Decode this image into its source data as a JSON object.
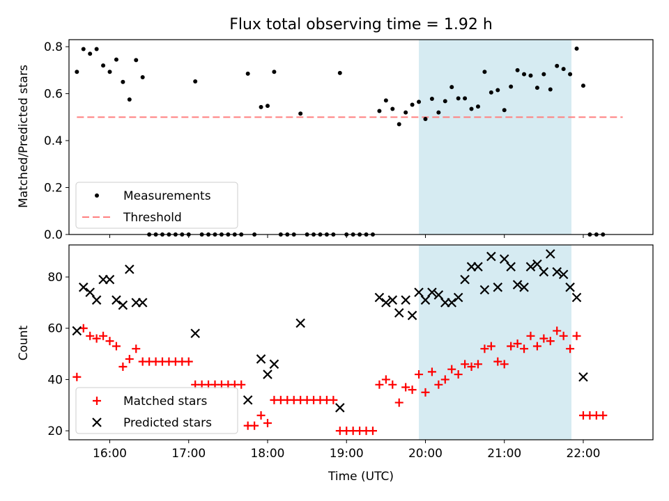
{
  "title": "Flux total observing time = 1.92 h",
  "chart_data": [
    {
      "type": "scatter",
      "ylabel": "Matched/Predicted stars",
      "xlim": [
        "15:29",
        "22:53"
      ],
      "ylim": [
        0,
        0.83
      ],
      "yticks": [
        "0.0",
        "0.2",
        "0.4",
        "0.6",
        "0.8"
      ],
      "shaded_span": [
        "19:55",
        "21:51"
      ],
      "shaded_color": "#add8e6",
      "threshold": 0.5,
      "legend_position": "lower-left",
      "legend": [
        {
          "label": "Measurements",
          "marker": "dot",
          "color": "#000000"
        },
        {
          "label": "Threshold",
          "marker": "dashed-line",
          "color": "#ff7f7f"
        }
      ],
      "series": [
        {
          "name": "Measurements",
          "color": "#000000",
          "points": [
            [
              "15:35",
              0.693
            ],
            [
              "15:40",
              0.79
            ],
            [
              "15:45",
              0.77
            ],
            [
              "15:50",
              0.79
            ],
            [
              "15:55",
              0.72
            ],
            [
              "16:00",
              0.693
            ],
            [
              "16:05",
              0.745
            ],
            [
              "16:10",
              0.65
            ],
            [
              "16:15",
              0.575
            ],
            [
              "16:20",
              0.743
            ],
            [
              "16:25",
              0.67
            ],
            [
              "16:30",
              0.0
            ],
            [
              "16:35",
              0.0
            ],
            [
              "16:40",
              0.0
            ],
            [
              "16:45",
              0.0
            ],
            [
              "16:50",
              0.0
            ],
            [
              "16:55",
              0.0
            ],
            [
              "17:00",
              0.0
            ],
            [
              "17:05",
              0.652
            ],
            [
              "17:10",
              0.0
            ],
            [
              "17:15",
              0.0
            ],
            [
              "17:20",
              0.0
            ],
            [
              "17:25",
              0.0
            ],
            [
              "17:30",
              0.0
            ],
            [
              "17:35",
              0.0
            ],
            [
              "17:40",
              0.0
            ],
            [
              "17:45",
              0.685
            ],
            [
              "17:50",
              0.0
            ],
            [
              "17:55",
              0.543
            ],
            [
              "18:00",
              0.548
            ],
            [
              "18:05",
              0.693
            ],
            [
              "18:10",
              0.0
            ],
            [
              "18:15",
              0.0
            ],
            [
              "18:20",
              0.0
            ],
            [
              "18:25",
              0.515
            ],
            [
              "18:30",
              0.0
            ],
            [
              "18:35",
              0.0
            ],
            [
              "18:40",
              0.0
            ],
            [
              "18:45",
              0.0
            ],
            [
              "18:50",
              0.0
            ],
            [
              "18:55",
              0.688
            ],
            [
              "19:00",
              0.0
            ],
            [
              "19:05",
              0.0
            ],
            [
              "19:10",
              0.0
            ],
            [
              "19:15",
              0.0
            ],
            [
              "19:20",
              0.0
            ],
            [
              "19:25",
              0.526
            ],
            [
              "19:30",
              0.571
            ],
            [
              "19:35",
              0.535
            ],
            [
              "19:40",
              0.47
            ],
            [
              "19:45",
              0.52
            ],
            [
              "19:50",
              0.553
            ],
            [
              "19:55",
              0.565
            ],
            [
              "20:00",
              0.492
            ],
            [
              "20:05",
              0.578
            ],
            [
              "20:10",
              0.52
            ],
            [
              "20:15",
              0.568
            ],
            [
              "20:20",
              0.628
            ],
            [
              "20:25",
              0.58
            ],
            [
              "20:30",
              0.58
            ],
            [
              "20:35",
              0.535
            ],
            [
              "20:40",
              0.545
            ],
            [
              "20:45",
              0.693
            ],
            [
              "20:50",
              0.605
            ],
            [
              "20:55",
              0.615
            ],
            [
              "21:00",
              0.53
            ],
            [
              "21:05",
              0.63
            ],
            [
              "21:10",
              0.7
            ],
            [
              "21:15",
              0.683
            ],
            [
              "21:20",
              0.677
            ],
            [
              "21:25",
              0.625
            ],
            [
              "21:30",
              0.683
            ],
            [
              "21:35",
              0.618
            ],
            [
              "21:40",
              0.718
            ],
            [
              "21:45",
              0.705
            ],
            [
              "21:50",
              0.683
            ],
            [
              "21:55",
              0.792
            ],
            [
              "22:00",
              0.634
            ],
            [
              "22:05",
              0.0
            ],
            [
              "22:10",
              0.0
            ],
            [
              "22:15",
              0.0
            ]
          ]
        },
        {
          "name": "Threshold",
          "color": "#ff7f7f",
          "x": [
            "15:35",
            "22:30"
          ],
          "y": [
            0.5,
            0.5
          ]
        }
      ]
    },
    {
      "type": "scatter",
      "xlabel": "Time (UTC)",
      "ylabel": "Count",
      "xlim": [
        "15:29",
        "22:53"
      ],
      "ylim": [
        16.5,
        92.5
      ],
      "yticks": [
        "20",
        "40",
        "60",
        "80"
      ],
      "xticks": [
        "16:00",
        "17:00",
        "18:00",
        "19:00",
        "20:00",
        "21:00",
        "22:00"
      ],
      "shaded_span": [
        "19:55",
        "21:51"
      ],
      "shaded_color": "#add8e6",
      "legend_position": "lower-left",
      "legend": [
        {
          "label": "Matched stars",
          "marker": "plus",
          "color": "#ff0000"
        },
        {
          "label": "Predicted stars",
          "marker": "x",
          "color": "#000000"
        }
      ],
      "series": [
        {
          "name": "Matched stars",
          "color": "#ff0000",
          "points": [
            [
              "15:35",
              41
            ],
            [
              "15:40",
              60
            ],
            [
              "15:45",
              57
            ],
            [
              "15:50",
              56
            ],
            [
              "15:55",
              57
            ],
            [
              "16:00",
              55
            ],
            [
              "16:05",
              53
            ],
            [
              "16:10",
              45
            ],
            [
              "16:15",
              48
            ],
            [
              "16:20",
              52
            ],
            [
              "16:25",
              47
            ],
            [
              "16:30",
              47
            ],
            [
              "16:35",
              47
            ],
            [
              "16:40",
              47
            ],
            [
              "16:45",
              47
            ],
            [
              "16:50",
              47
            ],
            [
              "16:55",
              47
            ],
            [
              "17:00",
              47
            ],
            [
              "17:05",
              38
            ],
            [
              "17:10",
              38
            ],
            [
              "17:15",
              38
            ],
            [
              "17:20",
              38
            ],
            [
              "17:25",
              38
            ],
            [
              "17:30",
              38
            ],
            [
              "17:35",
              38
            ],
            [
              "17:40",
              38
            ],
            [
              "17:45",
              22
            ],
            [
              "17:50",
              22
            ],
            [
              "17:55",
              26
            ],
            [
              "18:00",
              23
            ],
            [
              "18:05",
              32
            ],
            [
              "18:10",
              32
            ],
            [
              "18:15",
              32
            ],
            [
              "18:20",
              32
            ],
            [
              "18:25",
              32
            ],
            [
              "18:30",
              32
            ],
            [
              "18:35",
              32
            ],
            [
              "18:40",
              32
            ],
            [
              "18:45",
              32
            ],
            [
              "18:50",
              32
            ],
            [
              "18:55",
              20
            ],
            [
              "19:00",
              20
            ],
            [
              "19:05",
              20
            ],
            [
              "19:10",
              20
            ],
            [
              "19:15",
              20
            ],
            [
              "19:20",
              20
            ],
            [
              "19:25",
              38
            ],
            [
              "19:30",
              40
            ],
            [
              "19:35",
              38
            ],
            [
              "19:40",
              31
            ],
            [
              "19:45",
              37
            ],
            [
              "19:50",
              36
            ],
            [
              "19:55",
              42
            ],
            [
              "20:00",
              35
            ],
            [
              "20:05",
              43
            ],
            [
              "20:10",
              38
            ],
            [
              "20:15",
              40
            ],
            [
              "20:20",
              44
            ],
            [
              "20:25",
              42
            ],
            [
              "20:30",
              46
            ],
            [
              "20:35",
              45
            ],
            [
              "20:40",
              46
            ],
            [
              "20:45",
              52
            ],
            [
              "20:50",
              53
            ],
            [
              "20:55",
              47
            ],
            [
              "21:00",
              46
            ],
            [
              "21:05",
              53
            ],
            [
              "21:10",
              54
            ],
            [
              "21:15",
              52
            ],
            [
              "21:20",
              57
            ],
            [
              "21:25",
              53
            ],
            [
              "21:30",
              56
            ],
            [
              "21:35",
              55
            ],
            [
              "21:40",
              59
            ],
            [
              "21:45",
              57
            ],
            [
              "21:50",
              52
            ],
            [
              "21:55",
              57
            ],
            [
              "22:00",
              26
            ],
            [
              "22:05",
              26
            ],
            [
              "22:10",
              26
            ],
            [
              "22:15",
              26
            ]
          ]
        },
        {
          "name": "Predicted stars",
          "color": "#000000",
          "points": [
            [
              "15:35",
              59
            ],
            [
              "15:40",
              76
            ],
            [
              "15:45",
              74
            ],
            [
              "15:50",
              71
            ],
            [
              "15:55",
              79
            ],
            [
              "16:00",
              79
            ],
            [
              "16:05",
              71
            ],
            [
              "16:10",
              69
            ],
            [
              "16:15",
              83
            ],
            [
              "16:20",
              70
            ],
            [
              "16:25",
              70
            ],
            [
              "17:05",
              58
            ],
            [
              "17:45",
              32
            ],
            [
              "17:55",
              48
            ],
            [
              "18:00",
              42
            ],
            [
              "18:05",
              46
            ],
            [
              "18:25",
              62
            ],
            [
              "18:55",
              29
            ],
            [
              "19:25",
              72
            ],
            [
              "19:30",
              70
            ],
            [
              "19:35",
              71
            ],
            [
              "19:40",
              66
            ],
            [
              "19:45",
              71
            ],
            [
              "19:50",
              65
            ],
            [
              "19:55",
              74
            ],
            [
              "20:00",
              71
            ],
            [
              "20:05",
              74
            ],
            [
              "20:10",
              73
            ],
            [
              "20:15",
              70
            ],
            [
              "20:20",
              70
            ],
            [
              "20:25",
              72
            ],
            [
              "20:30",
              79
            ],
            [
              "20:35",
              84
            ],
            [
              "20:40",
              84
            ],
            [
              "20:45",
              75
            ],
            [
              "20:50",
              88
            ],
            [
              "20:55",
              76
            ],
            [
              "21:00",
              87
            ],
            [
              "21:05",
              84
            ],
            [
              "21:10",
              77
            ],
            [
              "21:15",
              76
            ],
            [
              "21:20",
              84
            ],
            [
              "21:25",
              85
            ],
            [
              "21:30",
              82
            ],
            [
              "21:35",
              89
            ],
            [
              "21:40",
              82
            ],
            [
              "21:45",
              81
            ],
            [
              "21:50",
              76
            ],
            [
              "21:55",
              72
            ],
            [
              "22:00",
              41
            ]
          ]
        }
      ]
    }
  ]
}
